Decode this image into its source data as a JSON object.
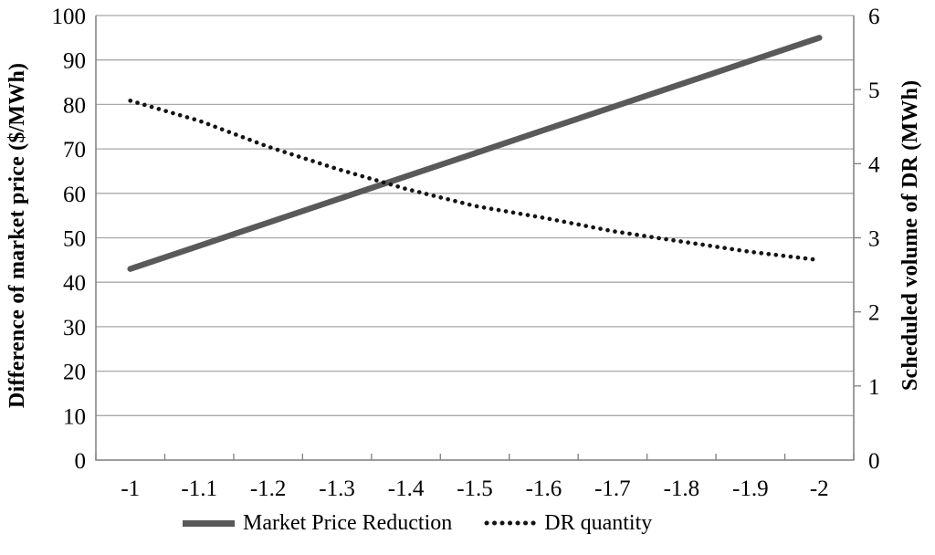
{
  "chart_data": {
    "type": "line",
    "title": "",
    "xlabel": "",
    "ylabel_left": "Difference of market price ($/MWh)",
    "ylabel_right": "Scheduled volume of DR (MWh)",
    "categories": [
      "-1",
      "-1.1",
      "-1.2",
      "-1.3",
      "-1.4",
      "-1.5",
      "-1.6",
      "-1.7",
      "-1.8",
      "-1.9",
      "-2"
    ],
    "y_left_axis": {
      "min": 0,
      "max": 100,
      "step": 10,
      "tick_labels": [
        "0",
        "10",
        "20",
        "30",
        "40",
        "50",
        "60",
        "70",
        "80",
        "90",
        "100"
      ]
    },
    "y_right_axis": {
      "min": 0,
      "max": 6,
      "step": 1,
      "tick_labels": [
        "0",
        "1",
        "2",
        "3",
        "4",
        "5",
        "6"
      ]
    },
    "series": [
      {
        "name": "Market Price Reduction",
        "axis": "left",
        "style": "solid",
        "color": "#595959",
        "values": [
          43,
          48.2,
          53.4,
          58.6,
          63.8,
          69,
          74.2,
          79.4,
          84.6,
          89.8,
          95
        ]
      },
      {
        "name": "DR quantity",
        "axis": "right",
        "style": "dotted",
        "color": "#141414",
        "values": [
          4.85,
          4.58,
          4.23,
          3.93,
          3.66,
          3.43,
          3.27,
          3.09,
          2.95,
          2.81,
          2.7
        ]
      }
    ],
    "grid": true,
    "legend_position": "bottom",
    "colors": {
      "gridline": "#a8a8a8",
      "axis_line": "#7f7f7f",
      "text": "#000000"
    }
  }
}
